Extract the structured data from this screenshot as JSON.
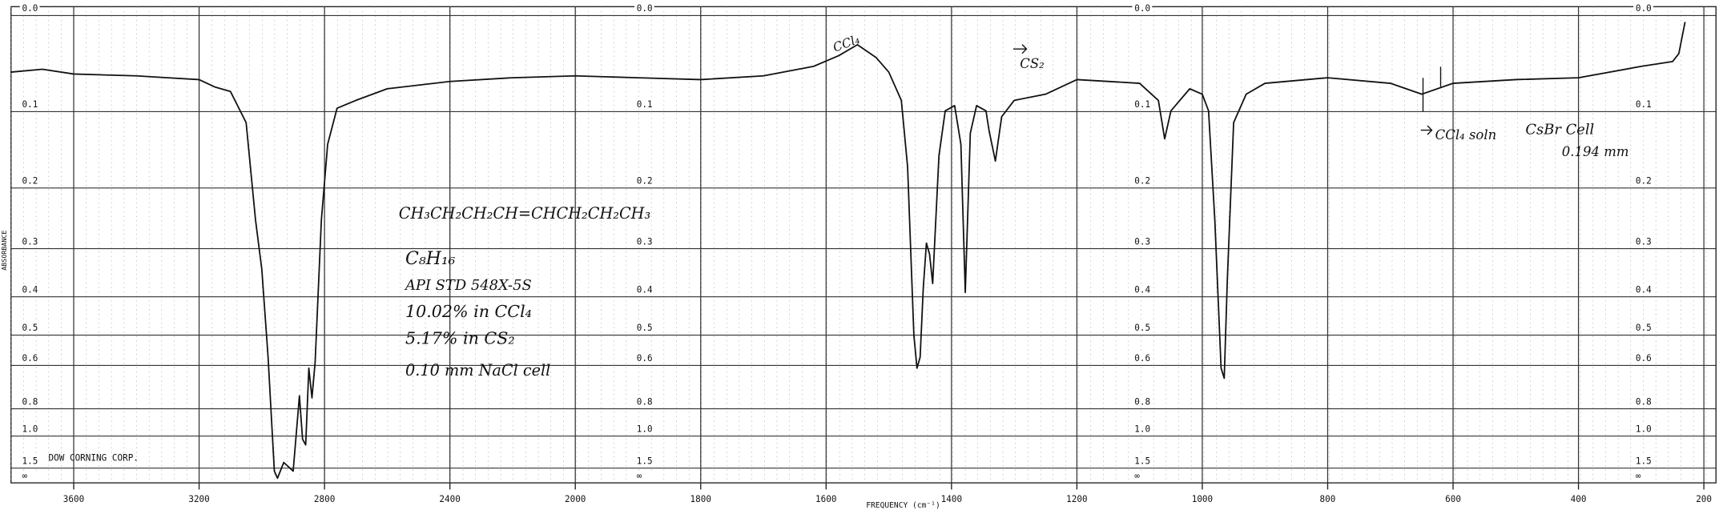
{
  "chart_data": {
    "type": "line",
    "xlabel": "FREQUENCY (cm⁻¹)",
    "ylabel": "ABSORBANCE",
    "x": [
      3800,
      3700,
      3600,
      3400,
      3300,
      3200,
      3150,
      3100,
      3050,
      3020,
      3000,
      2980,
      2960,
      2950,
      2930,
      2900,
      2880,
      2870,
      2860,
      2850,
      2840,
      2830,
      2810,
      2790,
      2760,
      2700,
      2600,
      2400,
      2200,
      2000,
      1900,
      1800,
      1700,
      1620,
      1580,
      1550,
      1520,
      1500,
      1480,
      1470,
      1460,
      1455,
      1450,
      1445,
      1440,
      1435,
      1430,
      1420,
      1410,
      1395,
      1385,
      1378,
      1370,
      1360,
      1345,
      1340,
      1330,
      1320,
      1300,
      1250,
      1200,
      1100,
      1070,
      1060,
      1050,
      1020,
      1000,
      990,
      980,
      970,
      965,
      960,
      950,
      930,
      900,
      800,
      700,
      650,
      600,
      500,
      400,
      300,
      250,
      240,
      230
    ],
    "values": [
      0.056,
      0.053,
      0.058,
      0.06,
      0.062,
      0.064,
      0.072,
      0.077,
      0.113,
      0.25,
      0.34,
      0.57,
      1.6,
      2.0,
      1.36,
      1.6,
      0.73,
      1.03,
      1.09,
      0.61,
      0.74,
      0.59,
      0.25,
      0.14,
      0.096,
      0.087,
      0.074,
      0.066,
      0.062,
      0.06,
      0.062,
      0.064,
      0.06,
      0.05,
      0.039,
      0.028,
      0.041,
      0.056,
      0.087,
      0.17,
      0.5,
      0.61,
      0.57,
      0.38,
      0.29,
      0.31,
      0.37,
      0.155,
      0.099,
      0.093,
      0.14,
      0.39,
      0.126,
      0.093,
      0.099,
      0.123,
      0.162,
      0.106,
      0.087,
      0.08,
      0.064,
      0.068,
      0.087,
      0.133,
      0.099,
      0.074,
      0.08,
      0.099,
      0.25,
      0.61,
      0.65,
      0.36,
      0.113,
      0.08,
      0.068,
      0.062,
      0.068,
      0.08,
      0.068,
      0.064,
      0.062,
      0.05,
      0.045,
      0.037,
      0.006
    ],
    "color": "#111111",
    "xlim": [
      3800,
      200
    ],
    "x_break": 2000,
    "x_compression": 2,
    "xticks": [
      3600,
      3200,
      2800,
      2400,
      2000,
      1800,
      1600,
      1400,
      1200,
      1000,
      800,
      600,
      400,
      200
    ],
    "yscale": "absorbance",
    "ylim": [
      0,
      null
    ],
    "yticks": [
      {
        "value": 0,
        "label": "0.0"
      },
      0.1,
      0.2,
      0.3,
      0.4,
      0.5,
      0.6,
      0.8,
      {
        "value": 1,
        "label": "1.0"
      },
      1.5,
      {
        "value": null,
        "label": "∞"
      }
    ],
    "grid": true,
    "annotations": [
      {
        "text": "CH₃CH₂CH₂CH=CHCH₂CH₂CH₃"
      },
      {
        "text": "C₈H₁₆"
      },
      {
        "text": "API STD 548X-5S"
      },
      {
        "text": "10.02% in CCl₄"
      },
      {
        "text": "5.17% in CS₂"
      },
      {
        "text": "0.10 mm NaCl cell"
      },
      {
        "text": "CCl₄"
      },
      {
        "text": "CS₂"
      },
      {
        "text": "CCl₄ soln"
      },
      {
        "text": "CsBr Cell"
      },
      {
        "text": "0.194 mm"
      },
      {
        "text": "DOW CORNING CORP."
      }
    ]
  }
}
